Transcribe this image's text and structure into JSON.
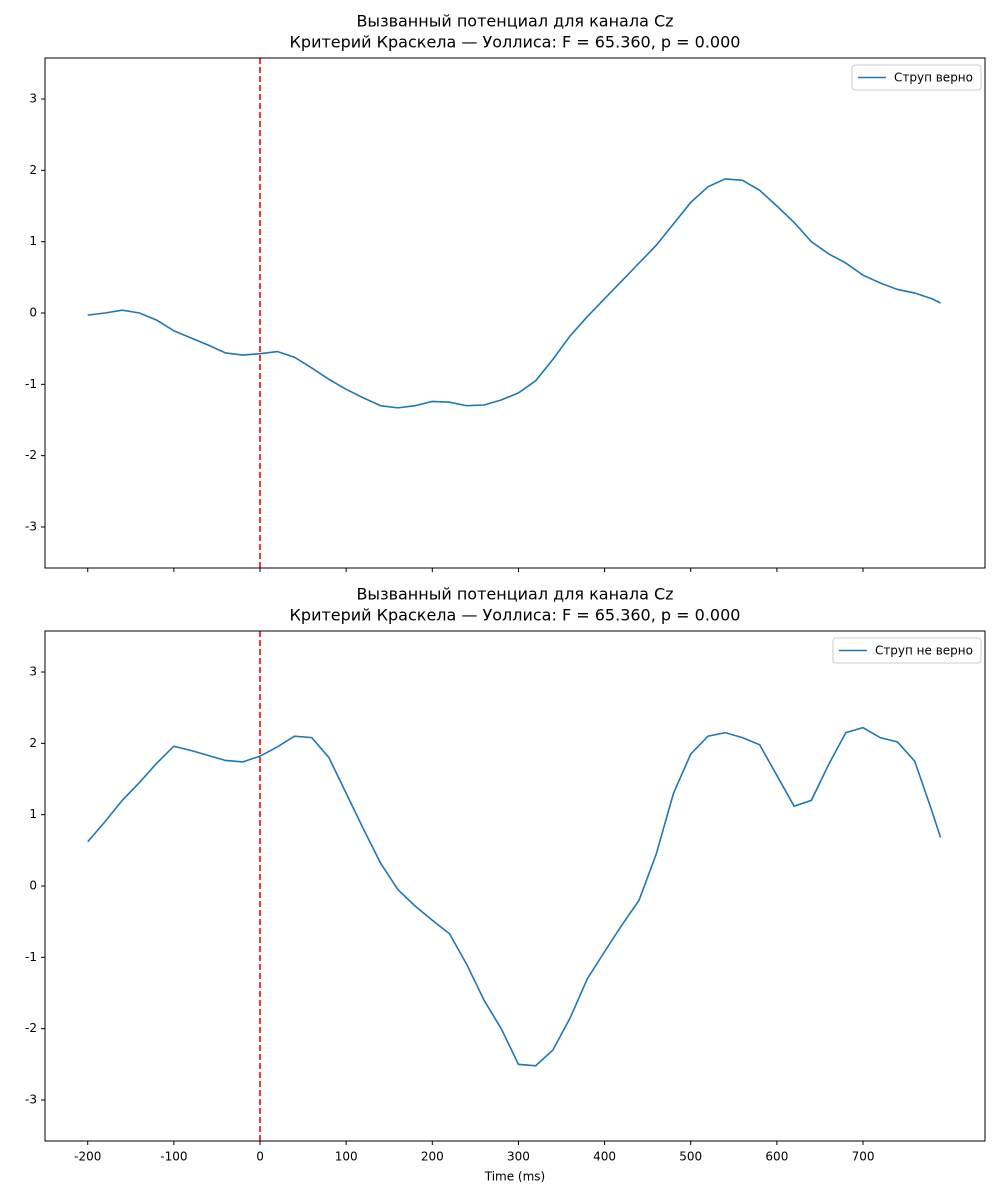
{
  "chart_data": [
    {
      "type": "line",
      "title": "Вызванный потенциал для канала Cz",
      "subtitle": "Критерий Краскела — Уоллиса: F = 65.360, p = 0.000",
      "x": [
        -200,
        -180,
        -160,
        -140,
        -120,
        -100,
        -80,
        -60,
        -40,
        -20,
        0,
        20,
        40,
        60,
        80,
        100,
        120,
        140,
        160,
        180,
        200,
        220,
        240,
        260,
        280,
        300,
        320,
        340,
        360,
        380,
        400,
        420,
        440,
        460,
        480,
        500,
        520,
        540,
        560,
        580,
        600,
        620,
        640,
        660,
        680,
        700,
        720,
        740,
        760,
        780,
        790
      ],
      "series": [
        {
          "name": "Струп верно",
          "color": "#1f77b4",
          "values": [
            -0.03,
            0.0,
            0.04,
            0.0,
            -0.1,
            -0.25,
            -0.35,
            -0.45,
            -0.56,
            -0.59,
            -0.57,
            -0.54,
            -0.62,
            -0.77,
            -0.93,
            -1.07,
            -1.19,
            -1.3,
            -1.33,
            -1.3,
            -1.24,
            -1.25,
            -1.3,
            -1.29,
            -1.22,
            -1.12,
            -0.95,
            -0.65,
            -0.32,
            -0.05,
            0.2,
            0.45,
            0.7,
            0.95,
            1.25,
            1.55,
            1.77,
            1.88,
            1.86,
            1.72,
            1.5,
            1.27,
            1.0,
            0.83,
            0.7,
            0.53,
            0.42,
            0.33,
            0.28,
            0.2,
            0.14
          ]
        }
      ],
      "vline": {
        "x": 0,
        "color": "#ff0000"
      },
      "xlim": [
        -249.6,
        841.6
      ],
      "xticks": [
        -200,
        -100,
        0,
        100,
        200,
        300,
        400,
        500,
        600,
        700
      ],
      "xticklabels": false,
      "ylim": [
        -3.575,
        3.575
      ],
      "yticks": [
        -3,
        -2,
        -1,
        0,
        1,
        2,
        3
      ],
      "legend": "upper right"
    },
    {
      "type": "line",
      "title": "Вызванный потенциал для канала Cz",
      "subtitle": "Критерий Краскела — Уоллиса: F = 65.360, p = 0.000",
      "xlabel": "Time (ms)",
      "x": [
        -200,
        -180,
        -160,
        -140,
        -120,
        -100,
        -80,
        -60,
        -40,
        -20,
        0,
        20,
        40,
        60,
        80,
        100,
        120,
        140,
        160,
        180,
        200,
        220,
        240,
        260,
        280,
        300,
        320,
        340,
        360,
        380,
        400,
        420,
        440,
        460,
        480,
        500,
        520,
        540,
        560,
        580,
        600,
        620,
        640,
        660,
        680,
        700,
        720,
        740,
        760,
        780,
        790
      ],
      "series": [
        {
          "name": "Струп не верно",
          "color": "#1f77b4",
          "values": [
            0.62,
            0.9,
            1.2,
            1.45,
            1.72,
            1.96,
            1.9,
            1.83,
            1.76,
            1.74,
            1.82,
            1.95,
            2.1,
            2.08,
            1.8,
            1.3,
            0.8,
            0.32,
            -0.05,
            -0.28,
            -0.48,
            -0.67,
            -1.1,
            -1.6,
            -2.0,
            -2.5,
            -2.52,
            -2.3,
            -1.85,
            -1.3,
            -0.92,
            -0.55,
            -0.2,
            0.45,
            1.3,
            1.85,
            2.1,
            2.15,
            2.08,
            1.98,
            1.55,
            1.12,
            1.2,
            1.7,
            2.15,
            2.22,
            2.08,
            2.02,
            1.75,
            1.05,
            0.68
          ]
        }
      ],
      "vline": {
        "x": 0,
        "color": "#ff0000"
      },
      "xlim": [
        -249.6,
        841.6
      ],
      "xticks": [
        -200,
        -100,
        0,
        100,
        200,
        300,
        400,
        500,
        600,
        700
      ],
      "xticklabels": true,
      "ylim": [
        -3.575,
        3.575
      ],
      "yticks": [
        -3,
        -2,
        -1,
        0,
        1,
        2,
        3
      ],
      "legend": "upper right"
    }
  ]
}
